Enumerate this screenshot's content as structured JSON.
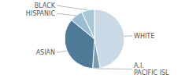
{
  "chart_data": {
    "type": "pie",
    "categories": [
      "WHITE",
      "A.I.\nPACIFIC ISL",
      "ASIAN",
      "HISPANIC",
      "BLACK"
    ],
    "values": [
      47,
      4,
      35,
      7,
      7
    ],
    "colors": [
      "#c9d9e6",
      "#7a9db8",
      "#4e7a98",
      "#9bbdd4",
      "#a8c8d8"
    ]
  }
}
